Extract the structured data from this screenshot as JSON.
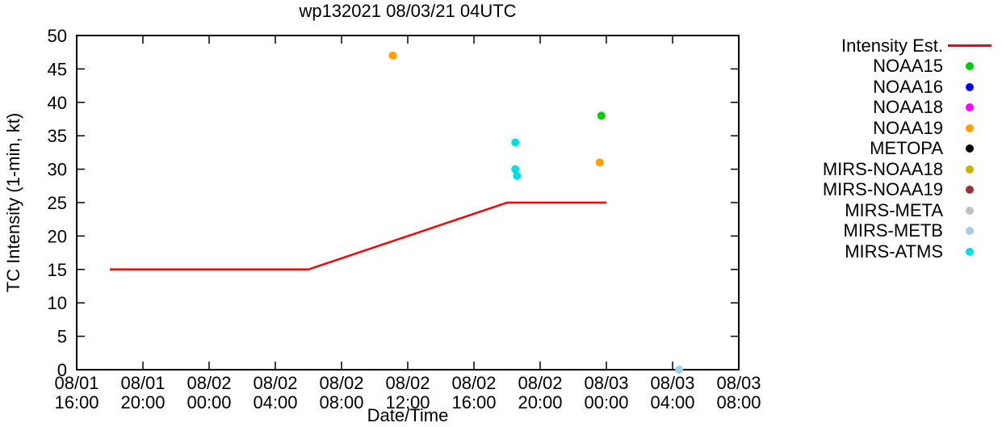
{
  "title": "wp132021 08/03/21 04UTC",
  "chart_data": {
    "type": "line+scatter",
    "title": "wp132021 08/03/21 04UTC",
    "xlabel": "Date/Time",
    "ylabel": "TC Intensity (1-min, kt)",
    "grid": false,
    "legend_position": "right",
    "x_axis": {
      "unit": "hours since 08/01 16:00",
      "range": [
        0,
        40
      ],
      "ticks": [
        {
          "t": 0,
          "date": "08/01",
          "time": "16:00"
        },
        {
          "t": 4,
          "date": "08/01",
          "time": "20:00"
        },
        {
          "t": 8,
          "date": "08/02",
          "time": "00:00"
        },
        {
          "t": 12,
          "date": "08/02",
          "time": "04:00"
        },
        {
          "t": 16,
          "date": "08/02",
          "time": "08:00"
        },
        {
          "t": 20,
          "date": "08/02",
          "time": "12:00"
        },
        {
          "t": 24,
          "date": "08/02",
          "time": "16:00"
        },
        {
          "t": 28,
          "date": "08/02",
          "time": "20:00"
        },
        {
          "t": 32,
          "date": "08/03",
          "time": "00:00"
        },
        {
          "t": 36,
          "date": "08/03",
          "time": "04:00"
        },
        {
          "t": 40,
          "date": "08/03",
          "time": "08:00"
        }
      ]
    },
    "y_axis": {
      "range": [
        0,
        50
      ],
      "ticks": [
        0,
        5,
        10,
        15,
        20,
        25,
        30,
        35,
        40,
        45,
        50
      ]
    },
    "series": [
      {
        "name": "Intensity Est.",
        "style": "line",
        "color": "#ff0000",
        "points": [
          {
            "t": 2,
            "label": "08/01 18:00",
            "v": 15
          },
          {
            "t": 14,
            "label": "08/02 06:00",
            "v": 15
          },
          {
            "t": 26,
            "label": "08/02 18:00",
            "v": 25
          },
          {
            "t": 32,
            "label": "08/03 00:00",
            "v": 25
          }
        ]
      },
      {
        "name": "NOAA15",
        "style": "scatter",
        "color": "#00cc00",
        "points": [
          {
            "t": 31.7,
            "label": "08/02 23:40",
            "v": 38
          }
        ]
      },
      {
        "name": "NOAA16",
        "style": "scatter",
        "color": "#0000ee",
        "points": []
      },
      {
        "name": "NOAA18",
        "style": "scatter",
        "color": "#ff00ff",
        "points": []
      },
      {
        "name": "NOAA19",
        "style": "scatter",
        "color": "#ffa000",
        "points": [
          {
            "t": 19.1,
            "label": "08/02 11:05",
            "v": 47
          },
          {
            "t": 31.6,
            "label": "08/02 23:35",
            "v": 31
          }
        ]
      },
      {
        "name": "METOPA",
        "style": "scatter",
        "color": "#000000",
        "points": []
      },
      {
        "name": "MIRS-NOAA18",
        "style": "scatter",
        "color": "#c8b400",
        "points": []
      },
      {
        "name": "MIRS-NOAA19",
        "style": "scatter",
        "color": "#993333",
        "points": []
      },
      {
        "name": "MIRS-META",
        "style": "scatter",
        "color": "#bfbfbf",
        "points": []
      },
      {
        "name": "MIRS-METB",
        "style": "scatter",
        "color": "#a6cee3",
        "points": [
          {
            "t": 36.4,
            "label": "08/03 04:25",
            "v": 0
          }
        ]
      },
      {
        "name": "MIRS-ATMS",
        "style": "scatter",
        "color": "#00e0e0",
        "points": [
          {
            "t": 26.5,
            "label": "08/02 18:30",
            "v": 34
          },
          {
            "t": 26.5,
            "label": "08/02 18:30",
            "v": 30
          },
          {
            "t": 26.6,
            "label": "08/02 18:35",
            "v": 29
          }
        ]
      }
    ]
  }
}
